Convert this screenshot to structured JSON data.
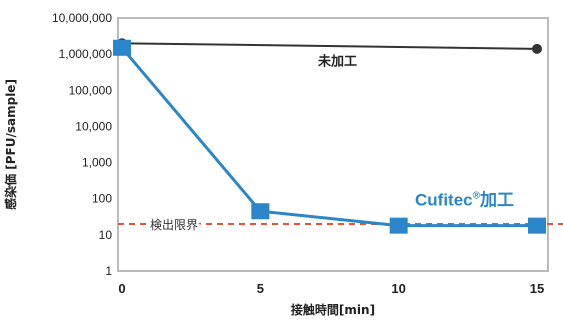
{
  "chart_data": {
    "type": "line",
    "scale_y": "log",
    "ylim": [
      1,
      10000000
    ],
    "xlim": [
      0,
      15
    ],
    "xlabel": "接触時間[min]",
    "ylabel": "感染価 [PFU/sample]",
    "x_ticks": [
      "0",
      "5",
      "10",
      "15"
    ],
    "y_ticks": [
      "1",
      "10",
      "100",
      "1,000",
      "10,000",
      "100,000",
      "1,000,000",
      "10,000,000"
    ],
    "grid": false,
    "series": [
      {
        "name": "未加工",
        "color": "#333333",
        "marker": "circle",
        "x": [
          0,
          15
        ],
        "y": [
          2000000,
          1400000
        ]
      },
      {
        "name": "Cufitec",
        "superscript": "®",
        "suffix": "加工",
        "color": "#2a86c8",
        "marker": "square",
        "x": [
          0,
          5,
          10,
          15
        ],
        "y": [
          1500000,
          45,
          18,
          18
        ]
      }
    ],
    "detection_limit": {
      "label": "検出限界",
      "value": 20,
      "color": "#e8503a"
    }
  }
}
